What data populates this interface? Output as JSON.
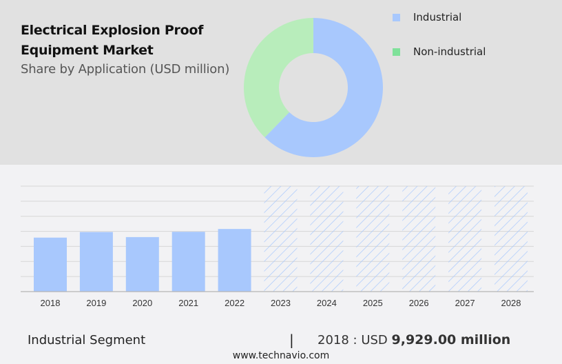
{
  "header": {
    "title_line1": "Electrical Explosion Proof",
    "title_line2": "Equipment Market",
    "subtitle": "Share by Application (USD million)"
  },
  "legend": [
    {
      "label": "Industrial",
      "color": "#a8c8fd"
    },
    {
      "label": "Non-industrial",
      "color": "#7fe19a"
    }
  ],
  "footer": {
    "segment": "Industrial Segment",
    "separator": "|",
    "year_prefix": "2018 : USD ",
    "value": "9,929.00 million",
    "website": "www.technavio.com"
  },
  "chart_data": [
    {
      "type": "pie",
      "title": "Share by Application (USD million)",
      "variant": "donut",
      "categories": [
        "Industrial",
        "Non-industrial"
      ],
      "values": [
        62.3,
        37.7
      ],
      "colors": [
        "#a8c8fd",
        "#b8edbb"
      ],
      "legend_position": "right"
    },
    {
      "type": "bar",
      "title": "Industrial Segment",
      "categories": [
        "2018",
        "2019",
        "2020",
        "2021",
        "2022",
        "2023",
        "2024",
        "2025",
        "2026",
        "2027",
        "2028"
      ],
      "values": [
        9929,
        10960,
        10030,
        11000,
        11520,
        null,
        null,
        null,
        null,
        null,
        null
      ],
      "forecast": [
        "2023",
        "2024",
        "2025",
        "2026",
        "2027",
        "2028"
      ],
      "forecast_style": "hatched",
      "xlabel": "",
      "ylabel": "USD million",
      "ylim": [
        0,
        19400
      ],
      "grid": true,
      "annotation": "2018 : USD 9,929.00 million",
      "bar_color": "#a8c8fd"
    }
  ]
}
